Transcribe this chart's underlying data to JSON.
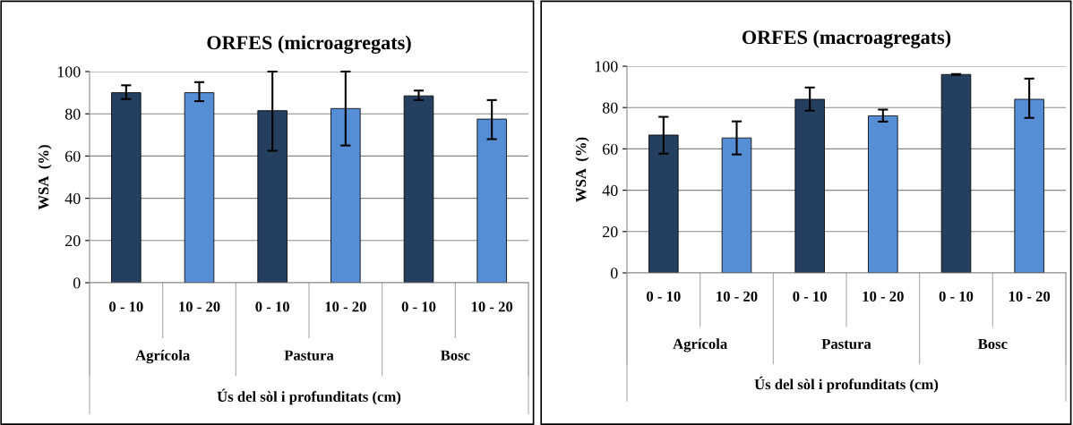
{
  "chart_data": [
    {
      "type": "bar",
      "title": "ORFES (microagregats)",
      "xlabel": "Ús del sòl i profunditats (cm)",
      "ylabel": "WSA  (%)",
      "categories": [
        "0 - 10",
        "10 - 20",
        "0 - 10",
        "10 - 20",
        "0 - 10",
        "10 - 20"
      ],
      "values": [
        90,
        90,
        81.5,
        82.5,
        88.5,
        77.5
      ],
      "errors": [
        [
          87,
          93.5
        ],
        [
          86,
          95
        ],
        [
          62.5,
          100
        ],
        [
          65,
          100
        ],
        [
          86.5,
          91
        ],
        [
          68,
          86.5
        ]
      ],
      "colors": [
        "#243f60",
        "#558ed5",
        "#243f60",
        "#558ed5",
        "#243f60",
        "#558ed5"
      ],
      "annotations": [
        "Agrícola",
        "Pastura",
        "Bosc"
      ],
      "ylim": [
        0,
        100
      ],
      "yticks": [
        0,
        20,
        40,
        60,
        80,
        100
      ],
      "grid": "y",
      "legend": false
    },
    {
      "type": "bar",
      "title": "ORFES (macroagregats)",
      "xlabel": "Ús del sòl i profunditats (cm)",
      "ylabel": "WSA  (%)",
      "categories": [
        "0 - 10",
        "10 - 20",
        "0 - 10",
        "10 - 20",
        "0 - 10",
        "10 - 20"
      ],
      "values": [
        66.7,
        65.3,
        84,
        76,
        96,
        84
      ],
      "errors": [
        [
          57.7,
          75.5
        ],
        [
          57.3,
          73.3
        ],
        [
          78.5,
          89.7
        ],
        [
          73.2,
          79
        ],
        [
          95.8,
          96.2
        ],
        [
          75,
          94
        ]
      ],
      "colors": [
        "#243f60",
        "#558ed5",
        "#243f60",
        "#558ed5",
        "#243f60",
        "#558ed5"
      ],
      "annotations": [
        "Agrícola",
        "Pastura",
        "Bosc"
      ],
      "ylim": [
        0,
        100
      ],
      "yticks": [
        0,
        20,
        40,
        60,
        80,
        100
      ],
      "grid": "y",
      "legend": false
    }
  ]
}
